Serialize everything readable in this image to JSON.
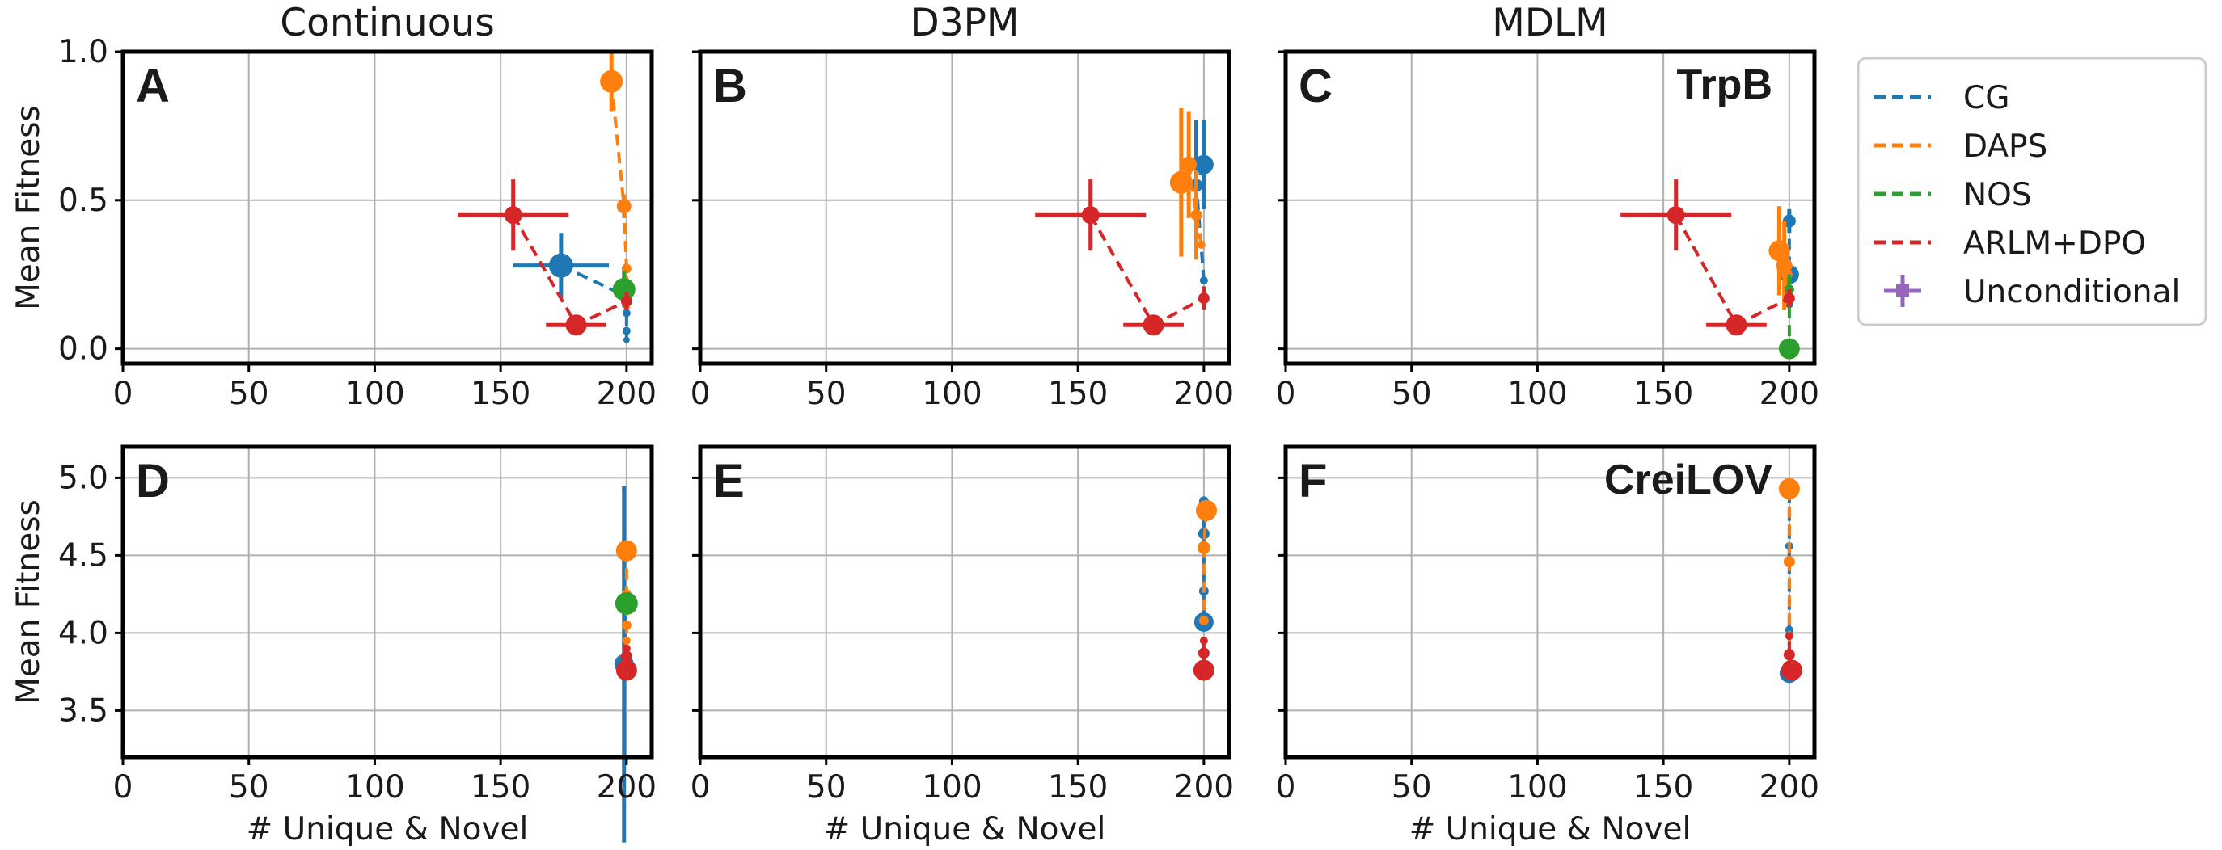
{
  "chart_data": {
    "type": "scatter",
    "column_titles": [
      "Continuous",
      "D3PM",
      "MDLM"
    ],
    "row_datasets": [
      "TrpB",
      "CreiLOV"
    ],
    "xlabel": "# Unique & Novel",
    "ylabel": "Mean Fitness",
    "xlim": [
      0,
      210
    ],
    "xticks": [
      0,
      50,
      100,
      150,
      200
    ],
    "xtick_labels": [
      "0",
      "50",
      "100",
      "150",
      "200"
    ],
    "grid": true,
    "legend": {
      "placement": "outside-right",
      "entries": [
        {
          "name": "CG",
          "color": "#1f77b4",
          "style": "dashed"
        },
        {
          "name": "DAPS",
          "color": "#ff7f0e",
          "style": "dashed"
        },
        {
          "name": "NOS",
          "color": "#2ca02c",
          "style": "dashed"
        },
        {
          "name": "ARLM+DPO",
          "color": "#d62728",
          "style": "dashed"
        },
        {
          "name": "Unconditional",
          "color": "#9467bd",
          "style": "marker-errorbar"
        }
      ]
    },
    "rows": [
      {
        "ylim": [
          -0.05,
          1.0
        ],
        "yticks": [
          0.0,
          0.5,
          1.0
        ],
        "ytick_labels": [
          "0.0",
          "0.5",
          "1.0"
        ],
        "label_panel": 2,
        "panels": [
          {
            "letter": "A",
            "series": [
              {
                "name": "CG",
                "color": "#1f77b4",
                "points": [
                  {
                    "x": 174,
                    "y": 0.28,
                    "size": 15,
                    "xerr": 19,
                    "yerr": 0.11
                  },
                  {
                    "x": 199,
                    "y": 0.18,
                    "size": 7
                  },
                  {
                    "x": 200,
                    "y": 0.12,
                    "size": 5
                  },
                  {
                    "x": 200,
                    "y": 0.06,
                    "size": 5
                  },
                  {
                    "x": 200,
                    "y": 0.03,
                    "size": 4
                  }
                ]
              },
              {
                "name": "DAPS",
                "color": "#ff7f0e",
                "points": [
                  {
                    "x": 194,
                    "y": 0.9,
                    "size": 14,
                    "xerr": 3,
                    "yerr": 0.1
                  },
                  {
                    "x": 199,
                    "y": 0.48,
                    "size": 9,
                    "yerr": 0.04
                  },
                  {
                    "x": 200,
                    "y": 0.27,
                    "size": 6
                  },
                  {
                    "x": 200,
                    "y": 0.2,
                    "size": 5
                  },
                  {
                    "x": 200,
                    "y": 0.14,
                    "size": 4
                  }
                ]
              },
              {
                "name": "NOS",
                "color": "#2ca02c",
                "points": [
                  {
                    "x": 199,
                    "y": 0.2,
                    "size": 14,
                    "yerr": 0.06
                  }
                ]
              },
              {
                "name": "ARLM+DPO",
                "color": "#d62728",
                "points": [
                  {
                    "x": 155,
                    "y": 0.45,
                    "size": 11,
                    "xerr": 22,
                    "yerr": 0.12
                  },
                  {
                    "x": 180,
                    "y": 0.08,
                    "size": 13,
                    "xerr": 12,
                    "yerr": 0.03
                  },
                  {
                    "x": 200,
                    "y": 0.16,
                    "size": 7,
                    "yerr": 0.03
                  }
                ]
              }
            ]
          },
          {
            "letter": "B",
            "series": [
              {
                "name": "CG",
                "color": "#1f77b4",
                "points": [
                  {
                    "x": 200,
                    "y": 0.62,
                    "size": 12,
                    "yerr": 0.15
                  },
                  {
                    "x": 197,
                    "y": 0.55,
                    "size": 8,
                    "yerr": 0.22
                  },
                  {
                    "x": 200,
                    "y": 0.23,
                    "size": 5
                  }
                ]
              },
              {
                "name": "DAPS",
                "color": "#ff7f0e",
                "points": [
                  {
                    "x": 191,
                    "y": 0.56,
                    "size": 14,
                    "yerr": 0.25
                  },
                  {
                    "x": 194,
                    "y": 0.62,
                    "size": 10,
                    "yerr": 0.18
                  },
                  {
                    "x": 197,
                    "y": 0.45,
                    "size": 7,
                    "yerr": 0.15
                  },
                  {
                    "x": 199,
                    "y": 0.35,
                    "size": 5
                  }
                ]
              },
              {
                "name": "ARLM+DPO",
                "color": "#d62728",
                "points": [
                  {
                    "x": 155,
                    "y": 0.45,
                    "size": 11,
                    "xerr": 22,
                    "yerr": 0.12
                  },
                  {
                    "x": 180,
                    "y": 0.08,
                    "size": 13,
                    "xerr": 12,
                    "yerr": 0.03
                  },
                  {
                    "x": 200,
                    "y": 0.17,
                    "size": 7,
                    "yerr": 0.04
                  }
                ]
              }
            ]
          },
          {
            "letter": "C",
            "series": [
              {
                "name": "CG",
                "color": "#1f77b4",
                "points": [
                  {
                    "x": 200,
                    "y": 0.43,
                    "size": 8,
                    "yerr": 0.04
                  },
                  {
                    "x": 200,
                    "y": 0.25,
                    "size": 12
                  },
                  {
                    "x": 200,
                    "y": 0.15,
                    "size": 5
                  }
                ]
              },
              {
                "name": "DAPS",
                "color": "#ff7f0e",
                "points": [
                  {
                    "x": 196,
                    "y": 0.33,
                    "size": 13,
                    "yerr": 0.15
                  },
                  {
                    "x": 198,
                    "y": 0.28,
                    "size": 10,
                    "yerr": 0.15
                  },
                  {
                    "x": 199,
                    "y": 0.25,
                    "size": 7,
                    "yerr": 0.1
                  }
                ]
              },
              {
                "name": "NOS",
                "color": "#2ca02c",
                "points": [
                  {
                    "x": 200,
                    "y": 0.2,
                    "size": 6,
                    "yerr": 0.05
                  },
                  {
                    "x": 200,
                    "y": 0.0,
                    "size": 13
                  }
                ]
              },
              {
                "name": "ARLM+DPO",
                "color": "#d62728",
                "points": [
                  {
                    "x": 155,
                    "y": 0.45,
                    "size": 11,
                    "xerr": 22,
                    "yerr": 0.12
                  },
                  {
                    "x": 179,
                    "y": 0.08,
                    "size": 13,
                    "xerr": 12,
                    "yerr": 0.03
                  },
                  {
                    "x": 200,
                    "y": 0.17,
                    "size": 7,
                    "yerr": 0.03
                  }
                ]
              }
            ]
          }
        ]
      },
      {
        "ylim": [
          3.2,
          5.2
        ],
        "yticks": [
          3.5,
          4.0,
          4.5,
          5.0
        ],
        "ytick_labels": [
          "3.5",
          "4.0",
          "4.5",
          "5.0"
        ],
        "label_panel": 2,
        "panels": [
          {
            "letter": "D",
            "series": [
              {
                "name": "CG",
                "color": "#1f77b4",
                "points": [
                  {
                    "x": 199,
                    "y": 3.8,
                    "size": 12,
                    "yerr": 1.15
                  },
                  {
                    "x": 200,
                    "y": 4.2,
                    "size": 7
                  }
                ]
              },
              {
                "name": "DAPS",
                "color": "#ff7f0e",
                "points": [
                  {
                    "x": 200,
                    "y": 4.53,
                    "size": 13
                  },
                  {
                    "x": 200,
                    "y": 4.25,
                    "size": 6
                  },
                  {
                    "x": 200,
                    "y": 4.05,
                    "size": 6
                  },
                  {
                    "x": 200,
                    "y": 3.95,
                    "size": 5
                  }
                ]
              },
              {
                "name": "NOS",
                "color": "#2ca02c",
                "points": [
                  {
                    "x": 200,
                    "y": 4.19,
                    "size": 14
                  }
                ]
              },
              {
                "name": "ARLM+DPO",
                "color": "#d62728",
                "points": [
                  {
                    "x": 200,
                    "y": 3.76,
                    "size": 13
                  },
                  {
                    "x": 200,
                    "y": 3.85,
                    "size": 7
                  },
                  {
                    "x": 200,
                    "y": 3.9,
                    "size": 5
                  }
                ]
              }
            ]
          },
          {
            "letter": "E",
            "series": [
              {
                "name": "CG",
                "color": "#1f77b4",
                "points": [
                  {
                    "x": 200,
                    "y": 4.85,
                    "size": 6
                  },
                  {
                    "x": 200,
                    "y": 4.64,
                    "size": 7
                  },
                  {
                    "x": 200,
                    "y": 4.27,
                    "size": 6
                  },
                  {
                    "x": 200,
                    "y": 4.07,
                    "size": 12
                  }
                ]
              },
              {
                "name": "DAPS",
                "color": "#ff7f0e",
                "points": [
                  {
                    "x": 201,
                    "y": 4.79,
                    "size": 13
                  },
                  {
                    "x": 200,
                    "y": 4.55,
                    "size": 8
                  },
                  {
                    "x": 200,
                    "y": 4.08,
                    "size": 6
                  }
                ]
              },
              {
                "name": "ARLM+DPO",
                "color": "#d62728",
                "points": [
                  {
                    "x": 200,
                    "y": 3.76,
                    "size": 13
                  },
                  {
                    "x": 200,
                    "y": 3.87,
                    "size": 7
                  },
                  {
                    "x": 200,
                    "y": 3.95,
                    "size": 5
                  }
                ]
              }
            ]
          },
          {
            "letter": "F",
            "series": [
              {
                "name": "CG",
                "color": "#1f77b4",
                "points": [
                  {
                    "x": 200,
                    "y": 4.91,
                    "size": 7
                  },
                  {
                    "x": 200,
                    "y": 4.56,
                    "size": 5
                  },
                  {
                    "x": 200,
                    "y": 4.02,
                    "size": 5
                  },
                  {
                    "x": 200,
                    "y": 3.74,
                    "size": 12
                  }
                ]
              },
              {
                "name": "DAPS",
                "color": "#ff7f0e",
                "points": [
                  {
                    "x": 200,
                    "y": 4.93,
                    "size": 13
                  },
                  {
                    "x": 200,
                    "y": 4.46,
                    "size": 7
                  },
                  {
                    "x": 200,
                    "y": 3.72,
                    "size": 5
                  }
                ]
              },
              {
                "name": "ARLM+DPO",
                "color": "#d62728",
                "points": [
                  {
                    "x": 201,
                    "y": 3.76,
                    "size": 13
                  },
                  {
                    "x": 200,
                    "y": 3.86,
                    "size": 7
                  },
                  {
                    "x": 200,
                    "y": 3.98,
                    "size": 5
                  }
                ]
              }
            ]
          }
        ]
      }
    ]
  }
}
